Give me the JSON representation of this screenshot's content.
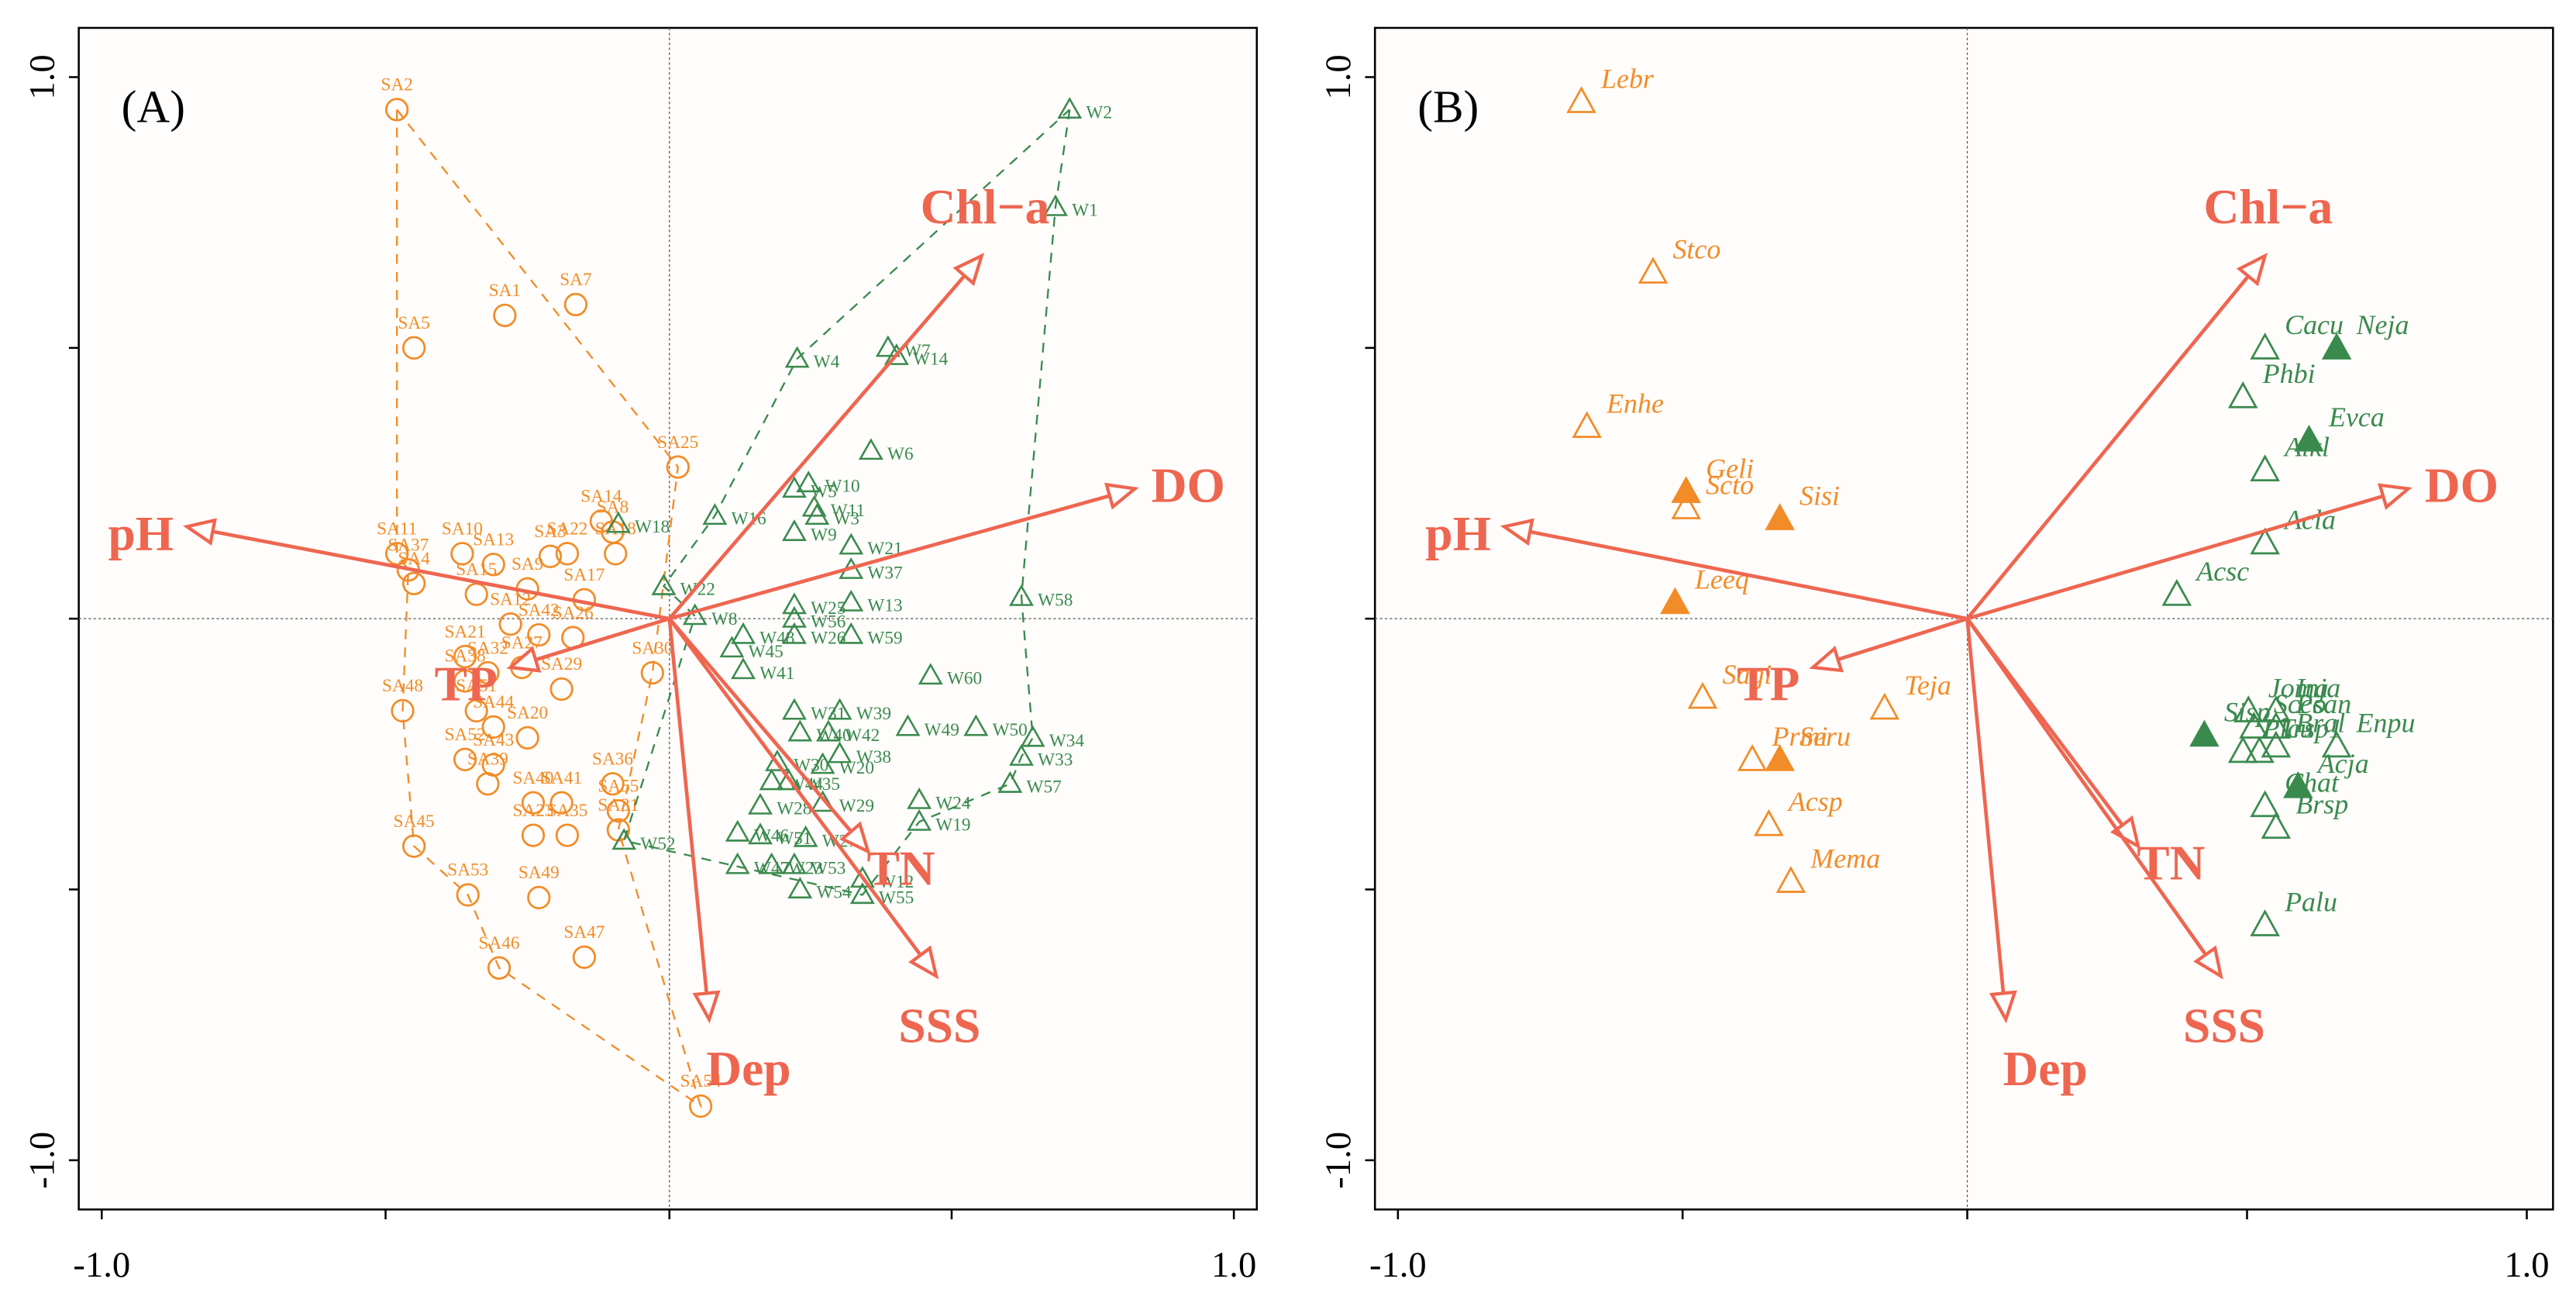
{
  "colors": {
    "orange": "#F28C28",
    "green": "#3A8A4E",
    "arrow": "#EE6650",
    "axis": "#000000",
    "bg": "#FFFDFB"
  },
  "chart_data": [
    {
      "type": "scatter",
      "panel_label": "(A)",
      "xlim": [
        -1.0,
        1.0
      ],
      "ylim": [
        -1.0,
        1.0
      ],
      "x_ticks": [
        "-1.0",
        "1.0"
      ],
      "y_ticks": [
        "1.0",
        "-1.0"
      ],
      "arrows": [
        {
          "label": "Chl−a",
          "x": 0.55,
          "y": 0.67
        },
        {
          "label": "DO",
          "x": 0.82,
          "y": 0.24
        },
        {
          "label": "pH",
          "x": -0.85,
          "y": 0.17
        },
        {
          "label": "TP",
          "x": -0.28,
          "y": -0.09
        },
        {
          "label": "TN",
          "x": 0.35,
          "y": -0.43
        },
        {
          "label": "SSS",
          "x": 0.47,
          "y": -0.66
        },
        {
          "label": "Dep",
          "x": 0.07,
          "y": -0.74
        }
      ],
      "series": [
        {
          "name": "SA",
          "marker": "circle",
          "points": [
            {
              "label": "SA2",
              "x": -0.48,
              "y": 0.94
            },
            {
              "label": "SA7",
              "x": -0.165,
              "y": 0.58
            },
            {
              "label": "SA1",
              "x": -0.29,
              "y": 0.56
            },
            {
              "label": "SA5",
              "x": -0.45,
              "y": 0.5
            },
            {
              "label": "SA25",
              "x": 0.015,
              "y": 0.28
            },
            {
              "label": "SA14",
              "x": -0.12,
              "y": 0.18
            },
            {
              "label": "SA8",
              "x": -0.1,
              "y": 0.16
            },
            {
              "label": "SA11",
              "x": -0.48,
              "y": 0.12
            },
            {
              "label": "SA10",
              "x": -0.365,
              "y": 0.12
            },
            {
              "label": "SA13",
              "x": -0.31,
              "y": 0.1
            },
            {
              "label": "SA22",
              "x": -0.18,
              "y": 0.12
            },
            {
              "label": "SA18",
              "x": -0.095,
              "y": 0.12
            },
            {
              "label": "SA3",
              "x": -0.21,
              "y": 0.115
            },
            {
              "label": "SA37",
              "x": -0.46,
              "y": 0.09
            },
            {
              "label": "SA4",
              "x": -0.45,
              "y": 0.065
            },
            {
              "label": "SA15",
              "x": -0.34,
              "y": 0.045
            },
            {
              "label": "SA9",
              "x": -0.25,
              "y": 0.055
            },
            {
              "label": "SA17",
              "x": -0.15,
              "y": 0.035
            },
            {
              "label": "SA12",
              "x": -0.28,
              "y": -0.01
            },
            {
              "label": "SA42",
              "x": -0.23,
              "y": -0.03
            },
            {
              "label": "SA26",
              "x": -0.17,
              "y": -0.035
            },
            {
              "label": "SA21",
              "x": -0.36,
              "y": -0.07
            },
            {
              "label": "SA27",
              "x": -0.26,
              "y": -0.09
            },
            {
              "label": "SA32",
              "x": -0.32,
              "y": -0.1
            },
            {
              "label": "SA38",
              "x": -0.36,
              "y": -0.115
            },
            {
              "label": "SA29",
              "x": -0.19,
              "y": -0.13
            },
            {
              "label": "SA51",
              "x": -0.34,
              "y": -0.17
            },
            {
              "label": "SA44",
              "x": -0.31,
              "y": -0.2
            },
            {
              "label": "SA48",
              "x": -0.47,
              "y": -0.17
            },
            {
              "label": "SA20",
              "x": -0.25,
              "y": -0.22
            },
            {
              "label": "SA52",
              "x": -0.36,
              "y": -0.26
            },
            {
              "label": "SA43",
              "x": -0.31,
              "y": -0.27
            },
            {
              "label": "SA36",
              "x": -0.1,
              "y": -0.305
            },
            {
              "label": "SA39",
              "x": -0.32,
              "y": -0.305
            },
            {
              "label": "SA40",
              "x": -0.24,
              "y": -0.34
            },
            {
              "label": "SA41",
              "x": -0.19,
              "y": -0.34
            },
            {
              "label": "SA55",
              "x": -0.09,
              "y": -0.355
            },
            {
              "label": "SA23",
              "x": -0.24,
              "y": -0.4
            },
            {
              "label": "SA35",
              "x": -0.18,
              "y": -0.4
            },
            {
              "label": "SA45",
              "x": -0.45,
              "y": -0.42
            },
            {
              "label": "SA31",
              "x": -0.09,
              "y": -0.39
            },
            {
              "label": "SA53",
              "x": -0.355,
              "y": -0.51
            },
            {
              "label": "SA49",
              "x": -0.23,
              "y": -0.515
            },
            {
              "label": "SA47",
              "x": -0.15,
              "y": -0.625
            },
            {
              "label": "SA46",
              "x": -0.3,
              "y": -0.645
            },
            {
              "label": "SA54",
              "x": 0.055,
              "y": -0.9
            },
            {
              "label": "SA30",
              "x": -0.03,
              "y": -0.1
            }
          ],
          "hull": [
            "SA2",
            "SA25",
            "SA30",
            "SA31",
            "SA54",
            "SA46",
            "SA53",
            "SA45",
            "SA48",
            "SA37",
            "SA11"
          ]
        },
        {
          "name": "W",
          "marker": "triangle",
          "points": [
            {
              "label": "W2",
              "x": 0.705,
              "y": 0.94
            },
            {
              "label": "W1",
              "x": 0.68,
              "y": 0.76
            },
            {
              "label": "W4",
              "x": 0.225,
              "y": 0.48
            },
            {
              "label": "W7",
              "x": 0.385,
              "y": 0.5
            },
            {
              "label": "W14",
              "x": 0.4,
              "y": 0.485
            },
            {
              "label": "W6",
              "x": 0.355,
              "y": 0.31
            },
            {
              "label": "W5",
              "x": 0.22,
              "y": 0.24
            },
            {
              "label": "W10",
              "x": 0.245,
              "y": 0.25
            },
            {
              "label": "W16",
              "x": 0.08,
              "y": 0.19
            },
            {
              "label": "W11",
              "x": 0.255,
              "y": 0.205
            },
            {
              "label": "W3",
              "x": 0.26,
              "y": 0.19
            },
            {
              "label": "W18",
              "x": -0.09,
              "y": 0.175
            },
            {
              "label": "W9",
              "x": 0.22,
              "y": 0.16
            },
            {
              "label": "W21",
              "x": 0.32,
              "y": 0.135
            },
            {
              "label": "W22",
              "x": -0.01,
              "y": 0.06
            },
            {
              "label": "W37",
              "x": 0.32,
              "y": 0.09
            },
            {
              "label": "W8",
              "x": 0.045,
              "y": 0.005
            },
            {
              "label": "W25",
              "x": 0.22,
              "y": 0.025
            },
            {
              "label": "W13",
              "x": 0.32,
              "y": 0.03
            },
            {
              "label": "W58",
              "x": 0.62,
              "y": 0.04
            },
            {
              "label": "W56",
              "x": 0.22,
              "y": 0.0
            },
            {
              "label": "W48",
              "x": 0.13,
              "y": -0.03
            },
            {
              "label": "W26",
              "x": 0.22,
              "y": -0.03
            },
            {
              "label": "W59",
              "x": 0.32,
              "y": -0.03
            },
            {
              "label": "W45",
              "x": 0.11,
              "y": -0.055
            },
            {
              "label": "W41",
              "x": 0.13,
              "y": -0.095
            },
            {
              "label": "W60",
              "x": 0.46,
              "y": -0.105
            },
            {
              "label": "W31",
              "x": 0.22,
              "y": -0.17
            },
            {
              "label": "W39",
              "x": 0.3,
              "y": -0.17
            },
            {
              "label": "W49",
              "x": 0.42,
              "y": -0.2
            },
            {
              "label": "W50",
              "x": 0.54,
              "y": -0.2
            },
            {
              "label": "W34",
              "x": 0.64,
              "y": -0.22
            },
            {
              "label": "W40",
              "x": 0.23,
              "y": -0.21
            },
            {
              "label": "W42",
              "x": 0.28,
              "y": -0.21
            },
            {
              "label": "W38",
              "x": 0.3,
              "y": -0.25
            },
            {
              "label": "W30",
              "x": 0.19,
              "y": -0.265
            },
            {
              "label": "W20",
              "x": 0.27,
              "y": -0.27
            },
            {
              "label": "W33",
              "x": 0.62,
              "y": -0.255
            },
            {
              "label": "W44",
              "x": 0.18,
              "y": -0.3
            },
            {
              "label": "W35",
              "x": 0.21,
              "y": -0.3
            },
            {
              "label": "W57",
              "x": 0.6,
              "y": -0.305
            },
            {
              "label": "W28",
              "x": 0.16,
              "y": -0.345
            },
            {
              "label": "W29",
              "x": 0.27,
              "y": -0.34
            },
            {
              "label": "W24",
              "x": 0.44,
              "y": -0.335
            },
            {
              "label": "W46",
              "x": 0.12,
              "y": -0.395
            },
            {
              "label": "W51",
              "x": 0.16,
              "y": -0.4
            },
            {
              "label": "W27",
              "x": 0.24,
              "y": -0.405
            },
            {
              "label": "W19",
              "x": 0.44,
              "y": -0.375
            },
            {
              "label": "W52",
              "x": -0.08,
              "y": -0.41
            },
            {
              "label": "W47",
              "x": 0.12,
              "y": -0.455
            },
            {
              "label": "W23",
              "x": 0.18,
              "y": -0.455
            },
            {
              "label": "W53",
              "x": 0.22,
              "y": -0.455
            },
            {
              "label": "W12",
              "x": 0.34,
              "y": -0.48
            },
            {
              "label": "W54",
              "x": 0.23,
              "y": -0.5
            },
            {
              "label": "W55",
              "x": 0.34,
              "y": -0.51
            }
          ],
          "hull": [
            "W2",
            "W1",
            "W58",
            "W34",
            "W33",
            "W57",
            "W19",
            "W55",
            "W52",
            "W8",
            "W22",
            "W16",
            "W4",
            "W2"
          ]
        }
      ]
    },
    {
      "type": "scatter",
      "panel_label": "(B)",
      "xlim": [
        -1.0,
        1.0
      ],
      "ylim": [
        -1.0,
        1.0
      ],
      "x_ticks": [
        "-1.0",
        "1.0"
      ],
      "y_ticks": [
        "1.0",
        "-1.0"
      ],
      "arrows": [
        {
          "label": "Chl−a",
          "x": 0.54,
          "y": 0.67
        },
        {
          "label": "DO",
          "x": 0.8,
          "y": 0.24
        },
        {
          "label": "pH",
          "x": -0.84,
          "y": 0.17
        },
        {
          "label": "TP",
          "x": -0.28,
          "y": -0.09
        },
        {
          "label": "TN",
          "x": 0.31,
          "y": -0.42
        },
        {
          "label": "SSS",
          "x": 0.46,
          "y": -0.66
        },
        {
          "label": "Dep",
          "x": 0.07,
          "y": -0.74
        }
      ],
      "series": [
        {
          "name": "orange taxa",
          "points": [
            {
              "label": "Lebr",
              "x": -0.7,
              "y": 0.955,
              "filled": false
            },
            {
              "label": "Stco",
              "x": -0.57,
              "y": 0.64,
              "filled": false
            },
            {
              "label": "Enhe",
              "x": -0.69,
              "y": 0.355,
              "filled": false
            },
            {
              "label": "Geli",
              "x": -0.51,
              "y": 0.235,
              "filled": true
            },
            {
              "label": "Scto",
              "x": -0.51,
              "y": 0.205,
              "filled": false
            },
            {
              "label": "Sisi",
              "x": -0.34,
              "y": 0.185,
              "filled": true
            },
            {
              "label": "Leeq",
              "x": -0.53,
              "y": 0.03,
              "filled": true
            },
            {
              "label": "Sagi",
              "x": -0.48,
              "y": -0.145,
              "filled": false
            },
            {
              "label": "Teja",
              "x": -0.15,
              "y": -0.165,
              "filled": false
            },
            {
              "label": "Seru",
              "x": -0.34,
              "y": -0.26,
              "filled": true
            },
            {
              "label": "Prmi",
              "x": -0.39,
              "y": -0.26,
              "filled": false
            },
            {
              "label": "Acsp",
              "x": -0.36,
              "y": -0.38,
              "filled": false
            },
            {
              "label": "Mema",
              "x": -0.32,
              "y": -0.485,
              "filled": false
            }
          ]
        },
        {
          "name": "green taxa",
          "points": [
            {
              "label": "Cacu",
              "x": 0.54,
              "y": 0.5,
              "filled": false
            },
            {
              "label": "Neja",
              "x": 0.67,
              "y": 0.5,
              "filled": true
            },
            {
              "label": "Phbi",
              "x": 0.5,
              "y": 0.41,
              "filled": false
            },
            {
              "label": "Evca",
              "x": 0.62,
              "y": 0.33,
              "filled": true
            },
            {
              "label": "Alkl",
              "x": 0.54,
              "y": 0.275,
              "filled": false
            },
            {
              "label": "Acla",
              "x": 0.54,
              "y": 0.14,
              "filled": false
            },
            {
              "label": "Acsc",
              "x": 0.38,
              "y": 0.045,
              "filled": false
            },
            {
              "label": "Joma",
              "x": 0.51,
              "y": -0.17,
              "filled": false
            },
            {
              "label": "Inja",
              "x": 0.56,
              "y": -0.17,
              "filled": false
            },
            {
              "label": "Scco",
              "x": 0.52,
              "y": -0.2,
              "filled": false
            },
            {
              "label": "Psan",
              "x": 0.56,
              "y": -0.2,
              "filled": false
            },
            {
              "label": "Sisp",
              "x": 0.43,
              "y": -0.215,
              "filled": true
            },
            {
              "label": "Plcu",
              "x": 0.5,
              "y": -0.245,
              "filled": false
            },
            {
              "label": "Trsp1",
              "x": 0.53,
              "y": -0.245,
              "filled": false
            },
            {
              "label": "Enpu",
              "x": 0.67,
              "y": -0.235,
              "filled": false
            },
            {
              "label": "Bral",
              "x": 0.56,
              "y": -0.235,
              "filled": false
            },
            {
              "label": "Acja",
              "x": 0.6,
              "y": -0.31,
              "filled": true
            },
            {
              "label": "Chat",
              "x": 0.54,
              "y": -0.345,
              "filled": false
            },
            {
              "label": "Brsp",
              "x": 0.56,
              "y": -0.385,
              "filled": false
            },
            {
              "label": "Palu",
              "x": 0.54,
              "y": -0.565,
              "filled": false
            }
          ]
        }
      ]
    }
  ]
}
